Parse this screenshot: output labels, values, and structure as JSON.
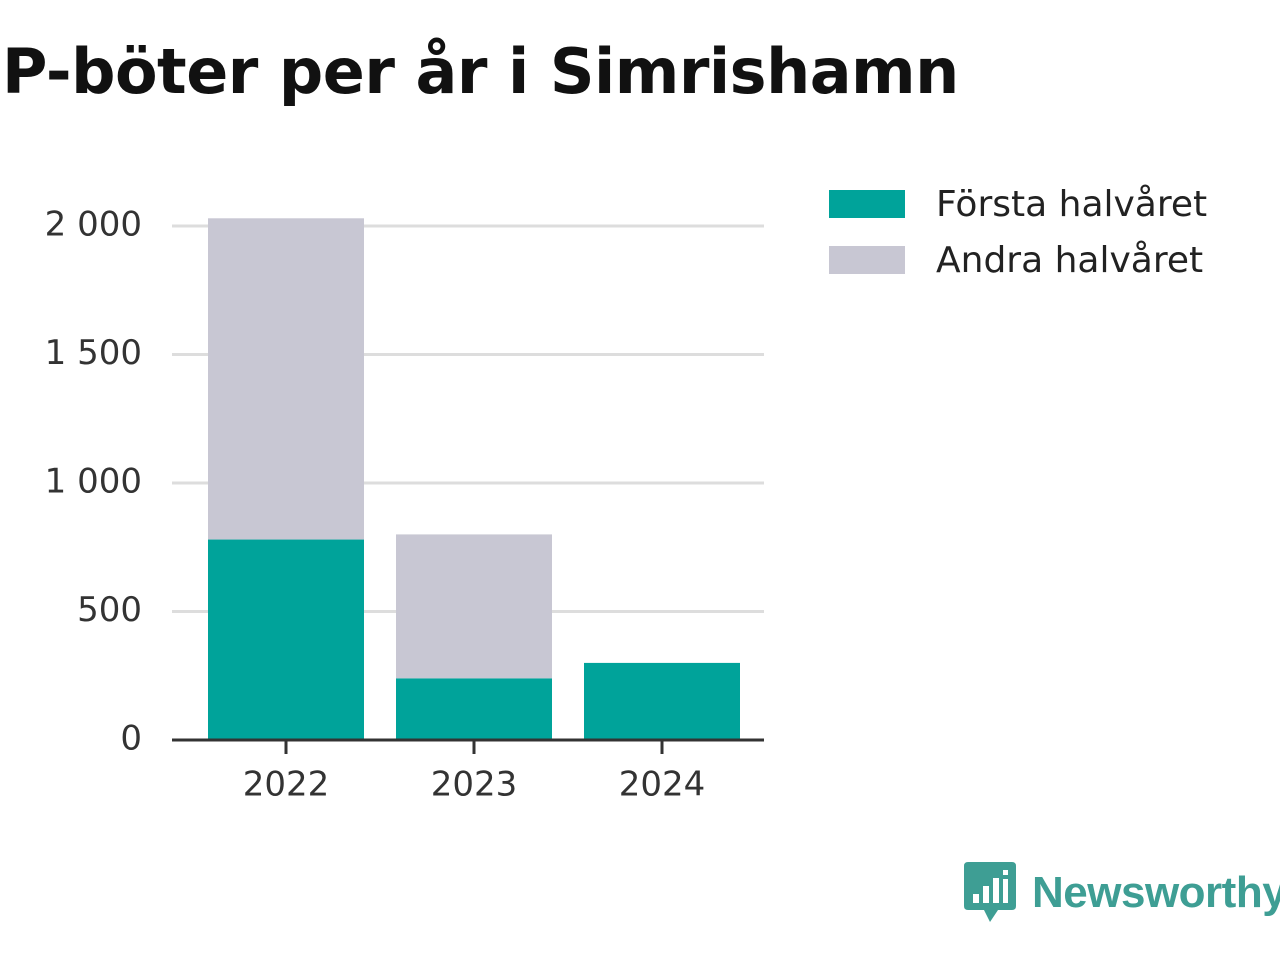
{
  "colors": {
    "first_half": "#00a39a",
    "second_half": "#c8c7d3",
    "gridline": "#dddddd",
    "axis": "#333333",
    "brand": "#3e9e94"
  },
  "brand": {
    "name": "Newsworthy",
    "icon": "newsworthy-logo-icon"
  },
  "chart_data": {
    "type": "bar",
    "stacked": true,
    "title": "P-böter per år i Simrishamn",
    "xlabel": "",
    "ylabel": "",
    "categories": [
      "2022",
      "2023",
      "2024"
    ],
    "series": [
      {
        "name": "Första halvåret",
        "values": [
          780,
          240,
          300
        ]
      },
      {
        "name": "Andra halvåret",
        "values": [
          1250,
          560,
          0
        ]
      }
    ],
    "ylim": [
      0,
      2000
    ],
    "y_ticks": [
      0,
      500,
      1000,
      1500,
      2000
    ],
    "y_tick_labels": [
      "0",
      "500",
      "1 000",
      "1 500",
      "2 000"
    ],
    "grid": true,
    "legend_position": "top-right"
  }
}
